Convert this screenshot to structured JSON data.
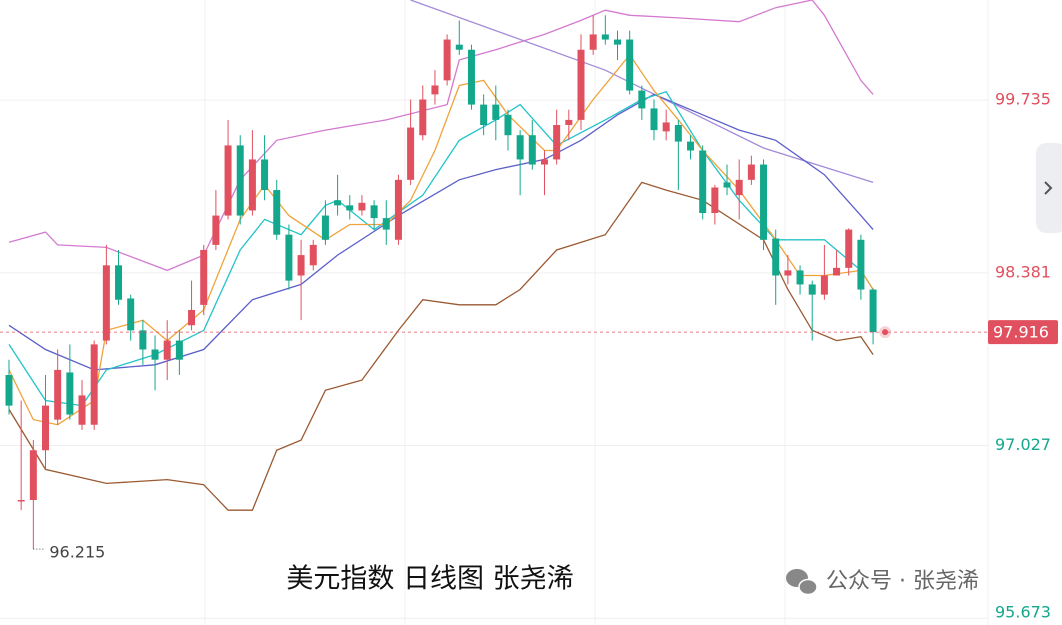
{
  "chart_data": {
    "type": "candlestick",
    "caption": "美元指数 日线图 张尧浠",
    "watermark": "公众号 · 张尧浠",
    "up_color": "#e0505f",
    "down_color": "#13a88c",
    "ylim": [
      95.62,
      100.52
    ],
    "yticks": [
      99.735,
      98.381,
      97.027,
      95.673
    ],
    "grid": true,
    "open": [
      97.58,
      96.6,
      96.6,
      96.99,
      97.23,
      97.6,
      97.19,
      97.19,
      97.85,
      98.44,
      98.18,
      97.93,
      97.78,
      97.7,
      97.85,
      97.97,
      98.13,
      98.6,
      98.83,
      99.38,
      98.87,
      99.27,
      99.03,
      98.68,
      98.36,
      98.44,
      98.83,
      98.95,
      98.91,
      98.87,
      98.91,
      98.81,
      98.64,
      99.11,
      99.46,
      99.78,
      99.89,
      100.17,
      100.13,
      99.7,
      99.7,
      99.62,
      99.46,
      99.46,
      99.23,
      99.27,
      99.54,
      99.58,
      100.13,
      100.25,
      100.21,
      100.21,
      99.81,
      99.67,
      99.49,
      99.54,
      99.41,
      99.34,
      98.85,
      99.09,
      98.99,
      99.11,
      99.23,
      98.65,
      98.36,
      98.4,
      98.29,
      98.21,
      98.36,
      98.42,
      98.64,
      98.25
    ],
    "high": [
      97.7,
      97.38,
      97.07,
      97.58,
      97.78,
      97.82,
      97.54,
      97.85,
      98.6,
      98.56,
      98.21,
      98.01,
      97.89,
      98.01,
      97.93,
      98.32,
      98.6,
      99.03,
      99.58,
      99.46,
      99.5,
      99.46,
      99.11,
      98.76,
      98.64,
      98.64,
      98.95,
      99.15,
      98.99,
      98.99,
      98.95,
      98.95,
      99.15,
      99.74,
      99.85,
      99.97,
      100.25,
      100.36,
      100.17,
      99.78,
      99.85,
      99.66,
      99.5,
      99.58,
      99.34,
      99.66,
      99.66,
      100.25,
      100.4,
      100.4,
      100.28,
      100.28,
      99.85,
      99.74,
      99.66,
      99.58,
      99.46,
      99.38,
      99.07,
      99.23,
      99.27,
      99.3,
      99.27,
      98.72,
      98.52,
      98.44,
      98.32,
      98.6,
      98.56,
      98.73,
      98.68,
      98.26
    ],
    "low": [
      97.27,
      96.52,
      96.215,
      96.84,
      97.19,
      97.23,
      97.15,
      97.15,
      97.82,
      98.13,
      97.85,
      97.66,
      97.46,
      97.54,
      97.58,
      97.93,
      98.05,
      98.56,
      98.8,
      98.76,
      98.83,
      98.95,
      98.64,
      98.25,
      98.01,
      98.4,
      98.6,
      98.83,
      98.8,
      98.83,
      98.72,
      98.6,
      98.6,
      99.07,
      99.42,
      99.7,
      99.85,
      100.09,
      99.66,
      99.46,
      99.42,
      99.34,
      98.99,
      99.19,
      98.99,
      99.23,
      99.42,
      99.5,
      100.09,
      100.17,
      100.05,
      99.78,
      99.58,
      99.42,
      99.42,
      99.03,
      99.27,
      98.8,
      98.76,
      98.99,
      98.8,
      99.07,
      98.56,
      98.13,
      98.29,
      98.21,
      97.85,
      98.17,
      98.36,
      98.36,
      98.17,
      97.82
    ],
    "close": [
      97.34,
      96.6,
      96.99,
      97.34,
      97.62,
      97.27,
      97.42,
      97.82,
      98.44,
      98.17,
      97.93,
      97.78,
      97.7,
      97.85,
      97.7,
      98.09,
      98.56,
      98.83,
      99.38,
      98.83,
      99.27,
      99.03,
      98.68,
      98.32,
      98.52,
      98.6,
      98.64,
      98.91,
      98.87,
      98.93,
      98.81,
      98.72,
      99.11,
      99.52,
      99.74,
      99.85,
      100.21,
      100.13,
      99.7,
      99.54,
      99.58,
      99.46,
      99.27,
      99.23,
      99.27,
      99.54,
      99.58,
      100.13,
      100.25,
      100.21,
      100.17,
      99.81,
      99.67,
      99.5,
      99.56,
      99.41,
      99.34,
      98.85,
      99.05,
      99.05,
      99.11,
      99.23,
      98.64,
      98.36,
      98.4,
      98.29,
      98.21,
      98.36,
      98.42,
      98.72,
      98.25,
      97.916
    ],
    "lines": [
      {
        "color": "#d47ad0",
        "x": [
          0,
          3,
          4,
          8,
          13,
          16,
          19,
          22,
          26,
          31,
          36,
          37,
          40,
          44,
          47,
          49,
          51,
          55,
          60,
          63,
          66,
          67,
          70,
          71
        ],
        "values": [
          98.62,
          98.7,
          98.6,
          98.58,
          98.4,
          98.52,
          99.11,
          99.42,
          99.5,
          99.58,
          99.7,
          100.05,
          100.13,
          100.25,
          100.36,
          100.44,
          100.4,
          100.38,
          100.35,
          100.46,
          100.52,
          100.4,
          99.89,
          99.78
        ]
      },
      {
        "color": "#9a5a32",
        "x": [
          0,
          3,
          8,
          13,
          16,
          18,
          20,
          22,
          24,
          26,
          29,
          32,
          34,
          37,
          40,
          42,
          45,
          49,
          52,
          54,
          57,
          62,
          64,
          66,
          68,
          70,
          71
        ],
        "values": [
          97.31,
          96.84,
          96.73,
          96.76,
          96.72,
          96.52,
          96.52,
          96.99,
          97.07,
          97.46,
          97.54,
          97.93,
          98.17,
          98.13,
          98.13,
          98.25,
          98.56,
          98.68,
          99.09,
          99.03,
          98.95,
          98.64,
          98.25,
          97.93,
          97.85,
          97.88,
          97.74
        ]
      },
      {
        "color": "#a48ad8",
        "x": [
          33,
          49,
          62,
          71
        ],
        "values": [
          100.52,
          99.97,
          99.36,
          99.09
        ]
      },
      {
        "color": "#5c5fc9",
        "x": [
          0,
          3,
          7,
          12,
          16,
          20,
          24,
          27,
          32,
          37,
          40,
          44,
          47,
          50,
          53,
          57,
          60,
          63,
          67,
          70,
          71
        ],
        "values": [
          97.97,
          97.78,
          97.62,
          97.66,
          97.78,
          98.17,
          98.29,
          98.52,
          98.83,
          99.11,
          99.19,
          99.27,
          99.42,
          99.62,
          99.78,
          99.62,
          99.5,
          99.42,
          99.15,
          98.83,
          98.72
        ]
      },
      {
        "color": "#22c3c8",
        "x": [
          0,
          3,
          6,
          8,
          12,
          16,
          19,
          21,
          24,
          26,
          27,
          30,
          34,
          37,
          40,
          42,
          45,
          49,
          52,
          54,
          57,
          60,
          63,
          67,
          70,
          71
        ],
        "values": [
          97.82,
          97.38,
          97.34,
          97.62,
          97.74,
          97.93,
          98.56,
          98.8,
          98.68,
          98.91,
          98.95,
          98.72,
          98.99,
          99.42,
          99.58,
          99.7,
          99.38,
          99.58,
          99.74,
          99.8,
          99.34,
          98.95,
          98.64,
          98.64,
          98.4,
          98.25
        ]
      },
      {
        "color": "#f0a33c",
        "x": [
          0,
          2,
          4,
          7,
          8,
          11,
          13,
          16,
          19,
          21,
          23,
          26,
          28,
          31,
          33,
          35,
          37,
          39,
          41,
          44,
          45,
          48,
          51,
          53,
          55,
          57,
          60,
          63,
          65,
          67,
          70,
          71
        ],
        "values": [
          97.62,
          97.23,
          97.19,
          97.38,
          97.93,
          98.01,
          97.85,
          98.09,
          98.8,
          99.07,
          98.83,
          98.64,
          98.76,
          98.76,
          98.95,
          99.34,
          99.85,
          99.89,
          99.62,
          99.34,
          99.34,
          99.74,
          100.09,
          99.81,
          99.58,
          99.34,
          99.03,
          98.64,
          98.36,
          98.36,
          98.4,
          98.25
        ]
      }
    ]
  }
}
